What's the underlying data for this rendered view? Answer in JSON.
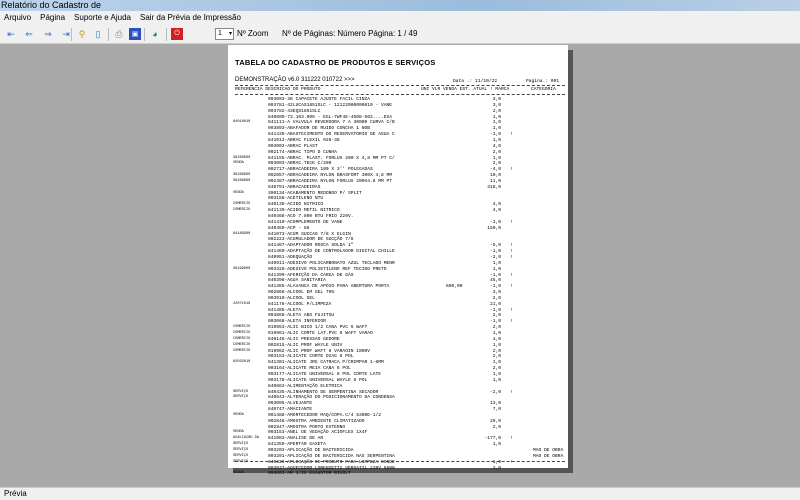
{
  "window": {
    "title": "Relatório do Cadastro de"
  },
  "menu": [
    "Arquivo",
    "Página",
    "Suporte e Ajuda",
    "Sair da Prévia de Impressão"
  ],
  "toolbar": {
    "zoom_value": "1",
    "zoom_label": "Nº Zoom",
    "pages_label": "Nº de Páginas: Número Página: 1 / 49",
    "icons": [
      "first-page-icon",
      "prev-page-icon",
      "next-page-icon",
      "last-page-icon",
      "find-icon",
      "two-pages-icon",
      "print-icon",
      "export-icon",
      "email-icon",
      "close-icon"
    ]
  },
  "report": {
    "title": "TABELA DO CADASTRO DE PRODUTOS E SERVIÇOS",
    "demo": "DEMONSTRAÇÃO v6.0 311222 010722 >>>",
    "date": "Data .: 11/10/22",
    "page": "Pagina.: 001",
    "headers": {
      "ref": "REFERENCIA DESCRICAO DO PRODUTO",
      "mid": "UNI VLR VENDA EST. ATUAL ! MARCA",
      "cat": "CATEGORIA"
    },
    "rows": [
      {
        "code": "",
        "desc": "003003-38 CAPACETE AJUSTE FACIL CINZA",
        "price": "",
        "stock": "3,0",
        "flag": "",
        "cat": ""
      },
      {
        "code": "",
        "desc": "003781-42LUCAS1851SLC - 12122000000810 - VANE",
        "price": "",
        "stock": "3,0",
        "flag": "",
        "cat": ""
      },
      {
        "code": "",
        "desc": "003782-43EQS1851SLC",
        "price": "",
        "stock": "2,0",
        "flag": "",
        "cat": ""
      },
      {
        "code": "",
        "desc": "840809-73.103.006 - EGL-7WF4E-4508-502....EXA",
        "price": "",
        "stock": "1,0",
        "flag": "",
        "cat": ""
      },
      {
        "code": "84010010",
        "desc": "841111-A VALVULA REVERSORA 7 A 30000 CURVA C/B",
        "price": "",
        "stock": "1,0",
        "flag": "",
        "cat": ""
      },
      {
        "code": "",
        "desc": "003893-ABAFADOR DE RUIDO CONCHA 1 NOB",
        "price": "",
        "stock": "1,0",
        "flag": "",
        "cat": ""
      },
      {
        "code": "",
        "desc": "841439-ABASTECIMENTO DO RESERVATORIO DE AGUA C",
        "price": "",
        "stock": "-1,0",
        "flag": "!",
        "cat": ""
      },
      {
        "code": "",
        "desc": "841013-ABRAC FLEXIL 028-38",
        "price": "",
        "stock": "1,0",
        "flag": "",
        "cat": ""
      },
      {
        "code": "",
        "desc": "003003-ABRAC PLAST",
        "price": "",
        "stock": "4,0",
        "flag": "",
        "cat": ""
      },
      {
        "code": "",
        "desc": "002174-ABRAC TIPO D CUNHA",
        "price": "",
        "stock": "2,0",
        "flag": "",
        "cat": ""
      },
      {
        "code": "39269090",
        "desc": "841155-ABRAC. PLAST. FORLUX 200 X 4,8 MM PT C/",
        "price": "",
        "stock": "1,0",
        "flag": "",
        "cat": ""
      },
      {
        "code": "VENDA",
        "desc": "003003-ABRAC.TECK C/200",
        "price": "",
        "stock": "2,0",
        "flag": "",
        "cat": ""
      },
      {
        "code": "",
        "desc": "002717-ABRACADEIRA 100 X 3'' POLEGADAS",
        "price": "",
        "stock": "-4,0",
        "flag": "!",
        "cat": ""
      },
      {
        "code": "39269090",
        "desc": "002857-ABRACADEIRA NYLON BRASFORT 300X 4,8 MM",
        "price": "",
        "stock": "10,0",
        "flag": "",
        "cat": ""
      },
      {
        "code": "39269090",
        "desc": "002487-ABRACADEIRA NYLON FORLUX 200X4.8 MM PT",
        "price": "",
        "stock": "11,0",
        "flag": "",
        "cat": ""
      },
      {
        "code": "",
        "desc": "840791-ABRACADEIRAS",
        "price": "",
        "stock": "318,0",
        "flag": "",
        "cat": ""
      },
      {
        "code": "VENDA",
        "desc": "390134-ACABAMENTO REDONDO P/ SPLIT",
        "price": "",
        "stock": "",
        "flag": "",
        "cat": ""
      },
      {
        "code": "",
        "desc": "003158-ACETILENO NTU",
        "price": "",
        "stock": "",
        "flag": "",
        "cat": ""
      },
      {
        "code": "COMERCIO",
        "desc": "840136-ACIDO NITRICO",
        "price": "",
        "stock": "4,0",
        "flag": "",
        "cat": ""
      },
      {
        "code": "COMERCIO",
        "desc": "841139-ACIDO METIL NITRICO",
        "price": "",
        "stock": "4,0",
        "flag": "",
        "cat": ""
      },
      {
        "code": "",
        "desc": "840468-ACO 7.800 BTU FRIO 220V.",
        "price": "",
        "stock": "",
        "flag": "",
        "cat": ""
      },
      {
        "code": "",
        "desc": "841410-ACOMPLEMENTO DE VANE",
        "price": "",
        "stock": "-1,0",
        "flag": "!",
        "cat": ""
      },
      {
        "code": "",
        "desc": "840459-ACP - 88",
        "price": "",
        "stock": "150,0",
        "flag": "",
        "cat": ""
      },
      {
        "code": "84189900",
        "desc": "841073-ACUM SUCCAO 7/8 X ELGIN",
        "price": "",
        "stock": "",
        "flag": "",
        "cat": ""
      },
      {
        "code": "",
        "desc": "002223-ACUMULADOR DE SUCÇÃO 7/8",
        "price": "",
        "stock": "",
        "flag": "",
        "cat": ""
      },
      {
        "code": "",
        "desc": "841467-ADAPTADOR ROSCA SOLDA 1\"",
        "price": "",
        "stock": "-5,0",
        "flag": "!",
        "cat": ""
      },
      {
        "code": "",
        "desc": "841469-ADAPTAÇÃO DE CONTROLADOR DIGITAL CHILLE",
        "price": "",
        "stock": "-1,0",
        "flag": "!",
        "cat": ""
      },
      {
        "code": "",
        "desc": "840951-ADEQUAÇÃO",
        "price": "",
        "stock": "-2,0",
        "flag": "!",
        "cat": ""
      },
      {
        "code": "",
        "desc": "840911-ADESIVO POLICARBONATO AZUL TECLADO MENR",
        "price": "",
        "stock": "1,0",
        "flag": "",
        "cat": ""
      },
      {
        "code": "39199000",
        "desc": "003328-ADESIVO POLIETILENO REF TECIDO PRETO",
        "price": "",
        "stock": "1,0",
        "flag": "",
        "cat": ""
      },
      {
        "code": "",
        "desc": "841399-AFERIÇÃO DA CARGA DE GÁS",
        "price": "",
        "stock": "-1,0",
        "flag": "!",
        "cat": ""
      },
      {
        "code": "",
        "desc": "840398-AGUA SANITARIA",
        "price": "",
        "stock": "45,0",
        "flag": "",
        "cat": ""
      },
      {
        "code": "",
        "desc": "841365-ALAVANCA DE APOIO PARA ABERTURA PORTA",
        "price": "690,00",
        "stock": "-1,0",
        "flag": "!",
        "cat": ""
      },
      {
        "code": "",
        "desc": "002866-ALCOOL EM GEL 70%",
        "price": "",
        "stock": "3,0",
        "flag": "",
        "cat": ""
      },
      {
        "code": "",
        "desc": "003910-ALCOOL GEL",
        "price": "",
        "stock": "2,0",
        "flag": "",
        "cat": ""
      },
      {
        "code": "22071019",
        "desc": "841178-ALCOOL P/LIMPEZA",
        "price": "",
        "stock": "21,0",
        "flag": "",
        "cat": ""
      },
      {
        "code": "",
        "desc": "841405-ALETA",
        "price": "",
        "stock": "-1,0",
        "flag": "!",
        "cat": ""
      },
      {
        "code": "",
        "desc": "003868-ALETA ABS FUJITSU",
        "price": "",
        "stock": "2,0",
        "flag": "",
        "cat": ""
      },
      {
        "code": "",
        "desc": "003068-ALETA INFERIOR",
        "price": "",
        "stock": "-1,0",
        "flag": "!",
        "cat": ""
      },
      {
        "code": "COMERCIO",
        "desc": "019953-ALIC BICO 1/2 CANA PVC 6 WAFT",
        "price": "",
        "stock": "2,0",
        "flag": "",
        "cat": ""
      },
      {
        "code": "COMERCIO",
        "desc": "019961-ALIC CORTE LAT.PVC 6 WAFT VARAO",
        "price": "",
        "stock": "1,0",
        "flag": "",
        "cat": ""
      },
      {
        "code": "COMERCIO",
        "desc": "840146-ALIC PRESSAO GEDORE",
        "price": "",
        "stock": "1,0",
        "flag": "",
        "cat": ""
      },
      {
        "code": "COMERCIO",
        "desc": "002815-ALIC PROF WAYLE UNIV",
        "price": "",
        "stock": "1,0",
        "flag": "",
        "cat": ""
      },
      {
        "code": "COMERCIO",
        "desc": "019962-ALIC PROF WAFT 8 VARAOIN 1000V",
        "price": "",
        "stock": "2,0",
        "flag": "",
        "cat": ""
      },
      {
        "code": "",
        "desc": "003153-ALICATE CORTE DIAG 6 POL",
        "price": "",
        "stock": "2,0",
        "flag": "",
        "cat": ""
      },
      {
        "code": "82032010",
        "desc": "841301-ALICATE JRG CATRACA P/CRIMPAR 1-6MM",
        "price": "",
        "stock": "1,0",
        "flag": "",
        "cat": ""
      },
      {
        "code": "",
        "desc": "003164-ALICATE MEIA CANA 6 POL",
        "price": "",
        "stock": "2,0",
        "flag": "",
        "cat": ""
      },
      {
        "code": "",
        "desc": "003177-ALICATE UNIVERSAL 8 POL CORTE LATE",
        "price": "",
        "stock": "1,0",
        "flag": "",
        "cat": ""
      },
      {
        "code": "",
        "desc": "003178-ALICATE UNIVERSAL WAYLE 8 POL",
        "price": "",
        "stock": "1,0",
        "flag": "",
        "cat": ""
      },
      {
        "code": "",
        "desc": "840863-ALIMENTAÇÃO ELETRICA",
        "price": "",
        "stock": "",
        "flag": "",
        "cat": ""
      },
      {
        "code": "SERVIÇO",
        "desc": "840435-ALINHAMENTO DE SERPENTINA SECADOR",
        "price": "",
        "stock": "-2,0",
        "flag": "!",
        "cat": ""
      },
      {
        "code": "SERVIÇO",
        "desc": "840643-ALTERAÇÃO DO POSICIONAMENTO DA CONDENSA",
        "price": "",
        "stock": "",
        "flag": "",
        "cat": ""
      },
      {
        "code": "",
        "desc": "003005-ALVEJANTE",
        "price": "",
        "stock": "13,0",
        "flag": "",
        "cat": ""
      },
      {
        "code": "",
        "desc": "840747-AMACIANTE",
        "price": "",
        "stock": "7,0",
        "flag": "",
        "cat": ""
      },
      {
        "code": "VENDA",
        "desc": "001488-AMORTECEDOR MAQ/COPA.C/4 5300E-1/2",
        "price": "",
        "stock": "",
        "flag": "",
        "cat": ""
      },
      {
        "code": "",
        "desc": "002848-AMOSTRA AMBIENTE CLIMATIZADO",
        "price": "",
        "stock": "29,0",
        "flag": "",
        "cat": ""
      },
      {
        "code": "",
        "desc": "002847-AMOSTRA PORTO EXTERNO",
        "price": "",
        "stock": "2,0",
        "flag": "",
        "cat": ""
      },
      {
        "code": "VENDA",
        "desc": "003153-ANEL DE VEDAÇÃO ACIOFLEX 1X4F",
        "price": "",
        "stock": "",
        "flag": "",
        "cat": ""
      },
      {
        "code": "AVALIAÇÃO DA",
        "desc": "841083-ANÁLISE DE AR",
        "price": "",
        "stock": "-177,0",
        "flag": "!",
        "cat": ""
      },
      {
        "code": "SERVIÇO",
        "desc": "841359-APERTAR GAXETA",
        "price": "",
        "stock": "1,0",
        "flag": "",
        "cat": ""
      },
      {
        "code": "SERVIÇO",
        "desc": "003203-APLICAÇÃO DE BACTERICIDA",
        "price": "",
        "stock": "",
        "flag": "",
        "cat": "MAO DE OBRA"
      },
      {
        "code": "SERVIÇO",
        "desc": "003201-APLICAÇÃO DE BACTERICIDA NAS SERPENTINA",
        "price": "",
        "stock": "",
        "flag": "",
        "cat": "MAO DE OBRA"
      },
      {
        "code": "SERVIÇO",
        "desc": "840329-APLICAÇÃO DE PRODUTO PARA LIMPEZA CONDE",
        "price": "",
        "stock": "-1,0",
        "flag": "!",
        "cat": ""
      },
      {
        "code": "",
        "desc": "003937-AQUECEDOR LORENZETTI VERSATIL 220V 5500",
        "price": "",
        "stock": "2,0",
        "flag": "",
        "cat": ""
      },
      {
        "code": "VENDA",
        "desc": "003001-AR 1/29 EXAUSTOR BIVOLT",
        "price": "",
        "stock": "",
        "flag": "",
        "cat": ""
      }
    ]
  },
  "status": {
    "text": "Prévia"
  }
}
